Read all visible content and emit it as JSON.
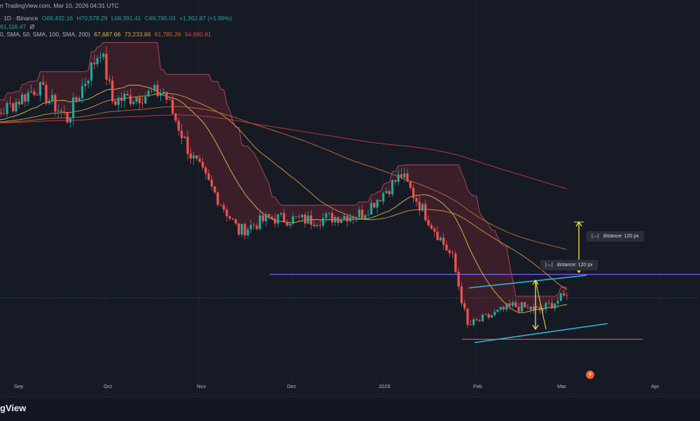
{
  "header": {
    "line1_prefix": "n TradingView.com, Mar 10, 2026 04:31 UTC",
    "line1_symbol": "· 1D · Binance",
    "ohlc": {
      "open": "O68,432.16",
      "high": "H70,578.29",
      "low": "L68,391.41",
      "close": "C69,795.03",
      "change": "+1,362.87 (+1.99%)"
    },
    "line2_value": "61,116.47",
    "line2_flag": "Ø",
    "line3_prefix": "0, SMA, 50, SMA, 100, SMA, 200)",
    "sma_values": [
      "67,687.66",
      "73,233.86",
      "81,785.26",
      "94,980.81"
    ]
  },
  "measure_labels": [
    {
      "icon": "|↔|",
      "text": "distance: 120 px"
    },
    {
      "icon": "|↔|",
      "text": "distance: 120 px"
    }
  ],
  "brand": {
    "text": "gView"
  },
  "colors": {
    "background": "#161a25",
    "up": "#26a69a",
    "down": "#ef5350",
    "sma20": "#e0c04a",
    "sma50": "#d99a3a",
    "sma100": "#c96a2a",
    "sma200": "#d23a3a",
    "channel": "#2fb7d8",
    "horizontal_purple": "#7b5cff",
    "horizontal_red": "#ef4343",
    "measure": "#f7e33a",
    "cloud": "#5a2530"
  },
  "chart_data": {
    "type": "candlestick",
    "x_tick_labels": [
      "Sep",
      "Oct",
      "Nov",
      "Dec",
      "2026",
      "Feb",
      "Mar",
      "Apr"
    ],
    "y_range_estimate": [
      60000,
      126000
    ],
    "horizontal_lines": [
      {
        "value": 74500,
        "color": "purple"
      },
      {
        "value": 60100,
        "color": "red"
      }
    ],
    "last_close": 69795.03,
    "price_samples": [
      {
        "date": "2025-08-25",
        "close": 110000
      },
      {
        "date": "2025-09-01",
        "close": 109500
      },
      {
        "date": "2025-09-15",
        "close": 116000
      },
      {
        "date": "2025-09-25",
        "close": 109000
      },
      {
        "date": "2025-10-06",
        "close": 124500
      },
      {
        "date": "2025-10-10",
        "close": 113000
      },
      {
        "date": "2025-10-27",
        "close": 115000
      },
      {
        "date": "2025-11-05",
        "close": 101000
      },
      {
        "date": "2025-11-21",
        "close": 84000
      },
      {
        "date": "2025-12-01",
        "close": 87000
      },
      {
        "date": "2025-12-15",
        "close": 86500
      },
      {
        "date": "2026-01-01",
        "close": 88000
      },
      {
        "date": "2026-01-14",
        "close": 96500
      },
      {
        "date": "2026-01-31",
        "close": 78000
      },
      {
        "date": "2026-02-05",
        "close": 63000
      },
      {
        "date": "2026-02-20",
        "close": 67500
      },
      {
        "date": "2026-03-01",
        "close": 66500
      },
      {
        "date": "2026-03-10",
        "close": 69795
      }
    ]
  }
}
